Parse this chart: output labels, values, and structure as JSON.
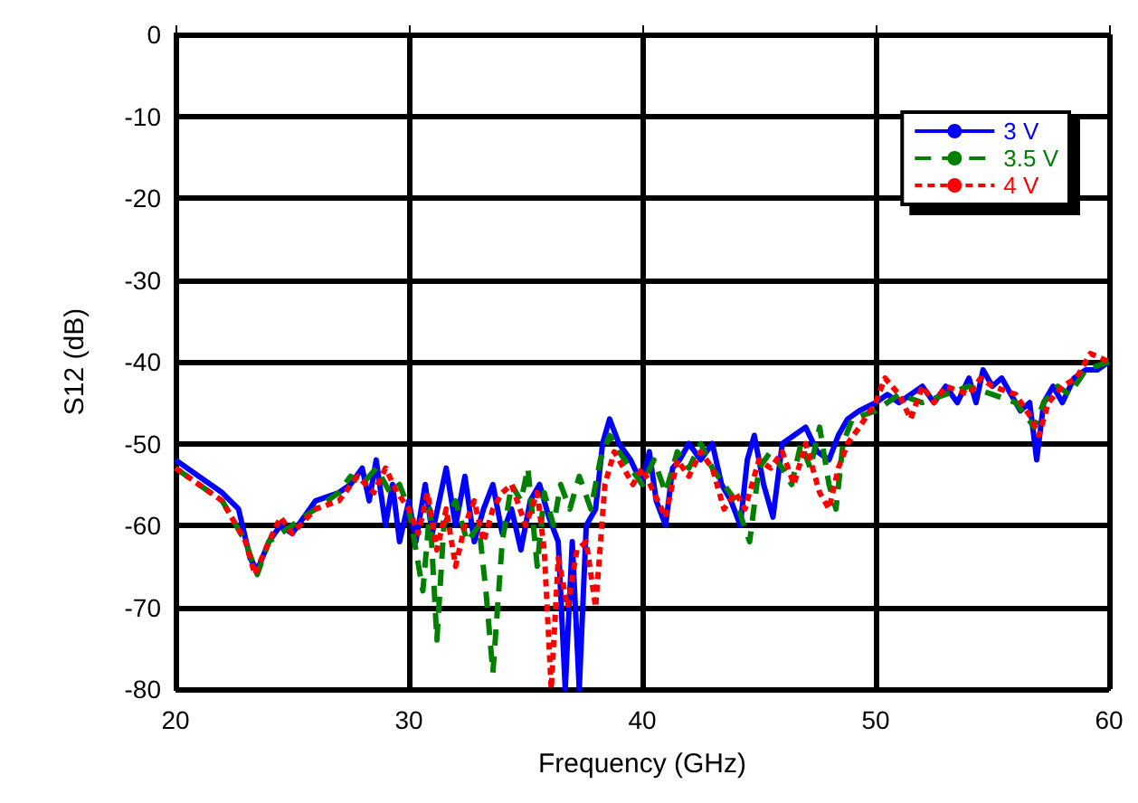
{
  "chart_data": {
    "type": "line",
    "xlabel": "Frequency (GHz)",
    "ylabel": "S12 (dB)",
    "xlim": [
      20,
      60
    ],
    "xticks": [
      20,
      30,
      40,
      50,
      60
    ],
    "ylim": [
      -80,
      0
    ],
    "yticks": [
      -80,
      -70,
      -60,
      -50,
      -40,
      -30,
      -20,
      -10,
      0
    ],
    "grid": true,
    "legend": "top right",
    "marker": "none",
    "series": [
      {
        "name": "3 V",
        "color": "#0000ff",
        "line_style": "solid",
        "x": [
          20,
          21,
          22,
          22.7,
          23.2,
          23.5,
          24,
          24.5,
          25,
          25.5,
          26,
          27,
          27.5,
          28,
          28.3,
          28.6,
          29,
          29.3,
          29.6,
          30,
          30.3,
          30.7,
          31,
          31.3,
          31.6,
          32,
          32.4,
          32.8,
          33.2,
          33.6,
          34,
          34.4,
          34.8,
          35.2,
          35.6,
          36,
          36.4,
          36.7,
          37,
          37.3,
          37.6,
          38,
          38.3,
          38.6,
          39,
          39.5,
          40,
          40.3,
          40.6,
          41,
          41.3,
          41.6,
          42,
          42.5,
          43,
          43.4,
          43.8,
          44.2,
          44.5,
          44.8,
          45.2,
          45.6,
          46,
          46.5,
          47,
          47.5,
          48,
          48.4,
          48.8,
          49.3,
          50,
          50.5,
          51,
          51.5,
          52,
          52.5,
          53,
          53.5,
          54,
          54.3,
          54.6,
          55,
          55.4,
          55.8,
          56.2,
          56.6,
          56.9,
          57.2,
          57.6,
          58,
          58.5,
          59,
          59.5,
          60
        ],
        "values": [
          -52,
          -54,
          -56,
          -58,
          -64,
          -65.5,
          -62,
          -60,
          -61,
          -59,
          -57,
          -56,
          -55,
          -53,
          -57,
          -52,
          -60,
          -55,
          -62,
          -57,
          -62,
          -55,
          -61,
          -57,
          -53,
          -60,
          -54,
          -62,
          -58,
          -55,
          -61,
          -58,
          -63,
          -57,
          -55,
          -59,
          -62,
          -80,
          -62,
          -80,
          -60,
          -58,
          -50,
          -47,
          -50,
          -52,
          -55,
          -51,
          -57,
          -60,
          -53,
          -52,
          -50,
          -52,
          -50,
          -55,
          -57,
          -60,
          -52,
          -49,
          -55,
          -59,
          -50,
          -49,
          -48,
          -51,
          -52,
          -49,
          -47,
          -46,
          -45,
          -44,
          -45,
          -44,
          -43,
          -45,
          -43,
          -45,
          -42,
          -45,
          -41,
          -43,
          -42,
          -44,
          -46,
          -45,
          -52,
          -45,
          -43,
          -45,
          -42,
          -41,
          -41,
          -40
        ]
      },
      {
        "name": "3.5 V",
        "color": "#008000",
        "line_style": "dashed",
        "x": [
          20,
          21,
          22,
          23,
          23.5,
          24,
          24.5,
          25,
          26,
          27,
          27.5,
          28,
          28.6,
          29.2,
          29.6,
          30,
          30.3,
          30.6,
          30.9,
          31.2,
          31.5,
          32,
          32.5,
          33,
          33.3,
          33.6,
          34,
          34.4,
          34.8,
          35.1,
          35.5,
          35.8,
          36.2,
          36.5,
          36.9,
          37.3,
          37.8,
          38.2,
          38.6,
          39,
          39.5,
          40,
          40.5,
          41,
          41.5,
          42,
          42.5,
          43,
          43.5,
          44,
          44.6,
          45,
          45.5,
          46,
          46.4,
          46.8,
          47.2,
          47.6,
          48,
          48.3,
          48.6,
          49,
          50,
          51,
          52,
          53,
          54,
          55,
          56,
          56.8,
          57.2,
          57.8,
          58.3,
          59,
          60
        ],
        "values": [
          -53,
          -55,
          -57,
          -62,
          -66,
          -62,
          -61,
          -60,
          -58,
          -56,
          -54,
          -55,
          -53,
          -56,
          -55,
          -58,
          -63,
          -68,
          -58,
          -74,
          -60,
          -57,
          -62,
          -60,
          -68,
          -78,
          -62,
          -55,
          -57,
          -53,
          -65,
          -56,
          -60,
          -55,
          -58,
          -54,
          -58,
          -52,
          -49,
          -51,
          -53,
          -55,
          -52,
          -56,
          -51,
          -53,
          -50,
          -53,
          -55,
          -57,
          -62,
          -53,
          -51,
          -53,
          -55,
          -50,
          -53,
          -48,
          -55,
          -58,
          -50,
          -47,
          -46,
          -44,
          -45,
          -44,
          -43,
          -44,
          -45,
          -48,
          -45,
          -43,
          -44,
          -41,
          -40
        ]
      },
      {
        "name": "4 V",
        "color": "#ff0000",
        "line_style": "dotted",
        "x": [
          20,
          21,
          22,
          23,
          23.4,
          24,
          24.5,
          25,
          26,
          27,
          27.8,
          28.5,
          29,
          29.5,
          30,
          30.4,
          30.8,
          31.2,
          31.6,
          32,
          32.4,
          32.8,
          33.2,
          33.6,
          34,
          34.4,
          35,
          35.5,
          35.8,
          36.1,
          36.4,
          36.8,
          37.2,
          37.6,
          38,
          38.4,
          38.8,
          39.2,
          39.6,
          40,
          40.5,
          41,
          41.5,
          42,
          42.5,
          43,
          43.5,
          44,
          44.4,
          45,
          45.5,
          46,
          46.5,
          47,
          47.6,
          48,
          48.4,
          48.8,
          49.3,
          50,
          50.4,
          51,
          51.5,
          52,
          52.5,
          53,
          54,
          54.5,
          55,
          56,
          56.7,
          57,
          57.4,
          58,
          58.6,
          59.2,
          60
        ],
        "values": [
          -53,
          -55,
          -57,
          -62,
          -66,
          -62,
          -59,
          -61,
          -58,
          -57,
          -54,
          -56,
          -53,
          -56,
          -58,
          -61,
          -56,
          -63,
          -58,
          -65,
          -60,
          -57,
          -62,
          -58,
          -56,
          -55,
          -60,
          -56,
          -63,
          -80,
          -64,
          -70,
          -63,
          -62,
          -70,
          -55,
          -51,
          -53,
          -55,
          -53,
          -56,
          -59,
          -52,
          -54,
          -51,
          -53,
          -58,
          -56,
          -58,
          -52,
          -53,
          -51,
          -55,
          -50,
          -56,
          -58,
          -53,
          -50,
          -48,
          -45,
          -42,
          -44,
          -47,
          -43,
          -45,
          -43,
          -44,
          -42,
          -43,
          -44,
          -47,
          -49,
          -45,
          -43,
          -42,
          -39,
          -40
        ]
      }
    ]
  }
}
